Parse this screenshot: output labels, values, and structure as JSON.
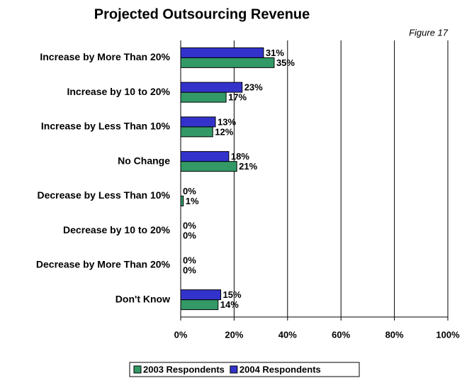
{
  "chart_data": {
    "type": "hbar",
    "title": "Projected Outsourcing Revenue",
    "annotation": "Figure 17",
    "categories": [
      "Increase by More Than 20%",
      "Increase by 10 to 20%",
      "Increase by Less Than 10%",
      "No Change",
      "Decrease by Less Than 10%",
      "Decrease by 10 to 20%",
      "Decrease by More Than 20%",
      "Don't Know"
    ],
    "series": [
      {
        "name": "2003 Respondents",
        "color": "#339966",
        "values": [
          35,
          17,
          12,
          21,
          1,
          0,
          0,
          14
        ],
        "value_labels": [
          "35%",
          "17%",
          "12%",
          "21%",
          "1%",
          "0%",
          "0%",
          "14%"
        ]
      },
      {
        "name": "2004 Respondents",
        "color": "#3333cc",
        "values": [
          31,
          23,
          13,
          18,
          0,
          0,
          0,
          15
        ],
        "value_labels": [
          "31%",
          "23%",
          "13%",
          "18%",
          "0%",
          "0%",
          "0%",
          "15%"
        ]
      }
    ],
    "xlim": [
      0,
      100
    ],
    "xticks": [
      {
        "value": 0,
        "label": "0%"
      },
      {
        "value": 20,
        "label": "20%"
      },
      {
        "value": 40,
        "label": "40%"
      },
      {
        "value": 60,
        "label": "60%"
      },
      {
        "value": 80,
        "label": "80%"
      },
      {
        "value": 100,
        "label": "100%"
      }
    ],
    "grid": true,
    "legend": "bottom"
  }
}
